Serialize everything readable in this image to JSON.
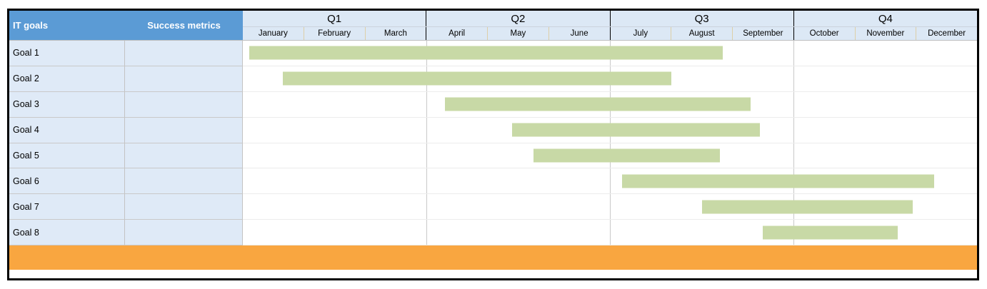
{
  "header": {
    "it_goals_label": "IT goals",
    "success_metrics_label": "Success metrics"
  },
  "colors": {
    "header_blue": "#5b9bd5",
    "subheader_bg": "#dce8f5",
    "row_label_bg": "#dfeaf7",
    "bar_green": "#c8d9a6",
    "footer_orange": "#f9a640"
  },
  "chart_data": {
    "type": "gantt",
    "quarters": [
      "Q1",
      "Q2",
      "Q3",
      "Q4"
    ],
    "months": [
      "January",
      "February",
      "March",
      "April",
      "May",
      "June",
      "July",
      "August",
      "September",
      "October",
      "November",
      "December"
    ],
    "axis_range_months": [
      0,
      12
    ],
    "bar_color": "#c8d9a6",
    "grid": "quarter-boundaries-only",
    "legend": "none",
    "tasks": [
      {
        "name": "Goal 1",
        "success_metrics": "",
        "start_month": 0.1,
        "end_month": 7.85,
        "start_label": "early January",
        "end_label": "late August"
      },
      {
        "name": "Goal 2",
        "success_metrics": "",
        "start_month": 0.65,
        "end_month": 7.0,
        "start_label": "late January",
        "end_label": "end of July"
      },
      {
        "name": "Goal 3",
        "success_metrics": "",
        "start_month": 3.3,
        "end_month": 8.3,
        "start_label": "early April",
        "end_label": "early September"
      },
      {
        "name": "Goal 4",
        "success_metrics": "",
        "start_month": 4.4,
        "end_month": 8.45,
        "start_label": "mid May",
        "end_label": "mid September"
      },
      {
        "name": "Goal 5",
        "success_metrics": "",
        "start_month": 4.75,
        "end_month": 7.8,
        "start_label": "late May",
        "end_label": "late August"
      },
      {
        "name": "Goal 6",
        "success_metrics": "",
        "start_month": 6.2,
        "end_month": 11.3,
        "start_label": "early July",
        "end_label": "early December"
      },
      {
        "name": "Goal 7",
        "success_metrics": "",
        "start_month": 7.5,
        "end_month": 10.95,
        "start_label": "mid August",
        "end_label": "end of November"
      },
      {
        "name": "Goal 8",
        "success_metrics": "",
        "start_month": 8.5,
        "end_month": 10.7,
        "start_label": "mid September",
        "end_label": "late November"
      }
    ]
  }
}
